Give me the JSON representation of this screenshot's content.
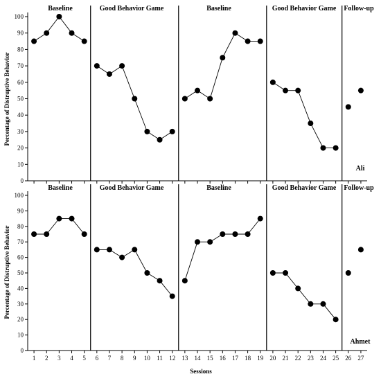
{
  "chart_data": {
    "type": "line",
    "xlabel": "Sessions",
    "ylabel": "Percentage of Distruptive Behavior",
    "ylim": [
      0,
      100
    ],
    "yticks": [
      0,
      10,
      20,
      30,
      40,
      50,
      60,
      70,
      80,
      90,
      100
    ],
    "x": [
      1,
      2,
      3,
      4,
      5,
      6,
      7,
      8,
      9,
      10,
      11,
      12,
      13,
      14,
      15,
      16,
      17,
      18,
      19,
      20,
      21,
      22,
      23,
      24,
      25,
      26,
      27
    ],
    "phases": [
      {
        "label": "Baseline",
        "sessions": [
          1,
          5
        ]
      },
      {
        "label": "Good Behavior Game",
        "sessions": [
          6,
          12
        ]
      },
      {
        "label": "Baseline",
        "sessions": [
          13,
          19
        ]
      },
      {
        "label": "Good Behavior Game",
        "sessions": [
          20,
          25
        ]
      },
      {
        "label": "Follow-up",
        "sessions": [
          26,
          27
        ]
      }
    ],
    "phase_change_after": [
      5.5,
      12.5,
      19.5,
      25.5
    ],
    "panels": [
      {
        "participant": "Ali",
        "values": [
          85,
          90,
          100,
          90,
          85,
          70,
          65,
          70,
          50,
          30,
          25,
          30,
          50,
          55,
          50,
          75,
          90,
          85,
          85,
          60,
          55,
          55,
          35,
          20,
          20,
          45,
          55
        ]
      },
      {
        "participant": "Ahmet",
        "values": [
          75,
          75,
          85,
          85,
          75,
          65,
          65,
          60,
          65,
          50,
          45,
          35,
          45,
          70,
          70,
          75,
          75,
          75,
          85,
          50,
          50,
          40,
          30,
          30,
          20,
          50,
          65
        ]
      }
    ]
  }
}
